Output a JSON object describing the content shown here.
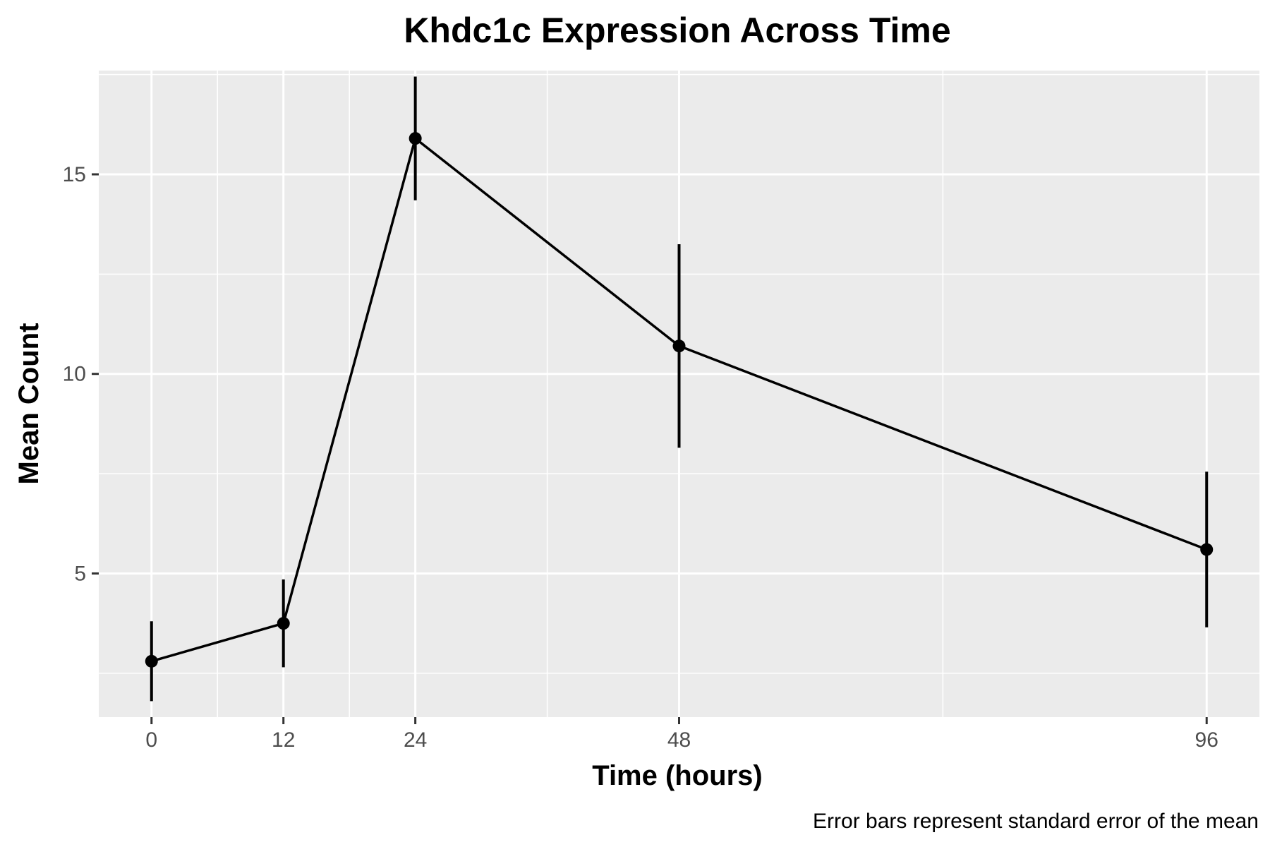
{
  "chart_data": {
    "type": "line",
    "title": "Khdc1c Expression Across Time",
    "xlabel": "Time (hours)",
    "ylabel": "Mean Count",
    "caption": "Error bars represent standard error of the mean",
    "x": [
      0,
      12,
      24,
      48,
      96
    ],
    "x_ticks": [
      "0",
      "12",
      "24",
      "48",
      "96"
    ],
    "xlim": [
      -4.8,
      100.8
    ],
    "y_ticks": [
      "5",
      "10",
      "15"
    ],
    "ylim": [
      1.4,
      17.6
    ],
    "series": [
      {
        "values": [
          2.8,
          3.75,
          15.9,
          10.7,
          5.6
        ],
        "error": [
          1.0,
          1.1,
          1.55,
          2.55,
          1.95
        ]
      }
    ],
    "grid": true,
    "colors": {
      "panel": "#ebebeb",
      "grid": "#ffffff",
      "line": "#000000"
    }
  }
}
